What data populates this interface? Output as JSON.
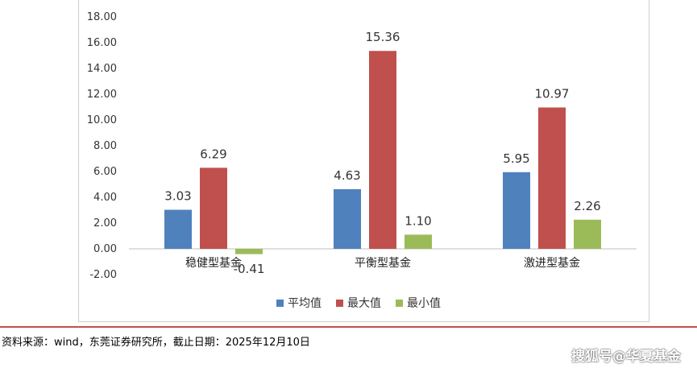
{
  "chart_data": {
    "type": "bar",
    "categories": [
      "稳健型基金",
      "平衡型基金",
      "激进型基金"
    ],
    "series": [
      {
        "name": "平均值",
        "values": [
          3.03,
          4.63,
          5.95
        ],
        "labels": [
          "3.03",
          "4.63",
          "5.95"
        ],
        "color": "#4f81bd"
      },
      {
        "name": "最大值",
        "values": [
          6.29,
          15.36,
          10.97
        ],
        "labels": [
          "6.29",
          "15.36",
          "10.97"
        ],
        "color": "#c0504d"
      },
      {
        "name": "最小值",
        "values": [
          -0.41,
          1.1,
          2.26
        ],
        "labels": [
          "-0.41",
          "1.10",
          "2.26"
        ],
        "color": "#9bbb59"
      }
    ],
    "ylim": [
      -2,
      18
    ],
    "yticks": [
      "-2.00",
      "0.00",
      "2.00",
      "4.00",
      "6.00",
      "8.00",
      "10.00",
      "12.00",
      "14.00",
      "16.00",
      "18.00"
    ],
    "legend_position": "bottom",
    "grid": false
  },
  "footer": {
    "source": "资料来源：wind，东莞证券研究所，截止日期：2025年12月10日",
    "watermark": "搜狐号@华夏基金"
  }
}
